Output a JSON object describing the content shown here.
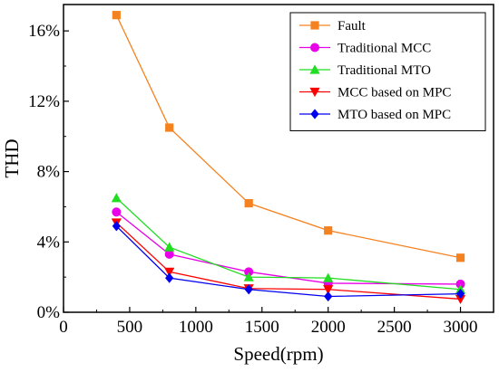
{
  "chart_data": {
    "type": "line",
    "xlabel": "Speed(rpm)",
    "ylabel": "THD",
    "xlim": [
      0,
      3250
    ],
    "ylim": [
      0,
      17.5
    ],
    "x_ticks": [
      0,
      500,
      1000,
      1500,
      2000,
      2500,
      3000
    ],
    "y_ticks": [
      0,
      4,
      8,
      12,
      16
    ],
    "y_tick_labels": [
      "0%",
      "4%",
      "8%",
      "12%",
      "16%"
    ],
    "grid": false,
    "legend_position": "top-right",
    "x": [
      400,
      800,
      1400,
      2000,
      3000
    ],
    "series": [
      {
        "name": "Fault",
        "color": "#f58220",
        "marker": "square",
        "values": [
          16.9,
          10.5,
          6.2,
          4.65,
          3.1
        ]
      },
      {
        "name": "Traditional MCC",
        "color": "#e800e8",
        "marker": "circle",
        "values": [
          5.7,
          3.3,
          2.3,
          1.65,
          1.6
        ]
      },
      {
        "name": "Traditional MTO",
        "color": "#22dd22",
        "marker": "triangle-up",
        "values": [
          6.5,
          3.7,
          2.0,
          1.95,
          1.3
        ]
      },
      {
        "name": "MCC based on MPC",
        "color": "#ff0000",
        "marker": "triangle-down",
        "values": [
          5.1,
          2.3,
          1.35,
          1.3,
          0.75
        ]
      },
      {
        "name": "MTO based on MPC",
        "color": "#0000ee",
        "marker": "diamond",
        "values": [
          4.9,
          1.95,
          1.3,
          0.9,
          1.05
        ]
      }
    ]
  }
}
